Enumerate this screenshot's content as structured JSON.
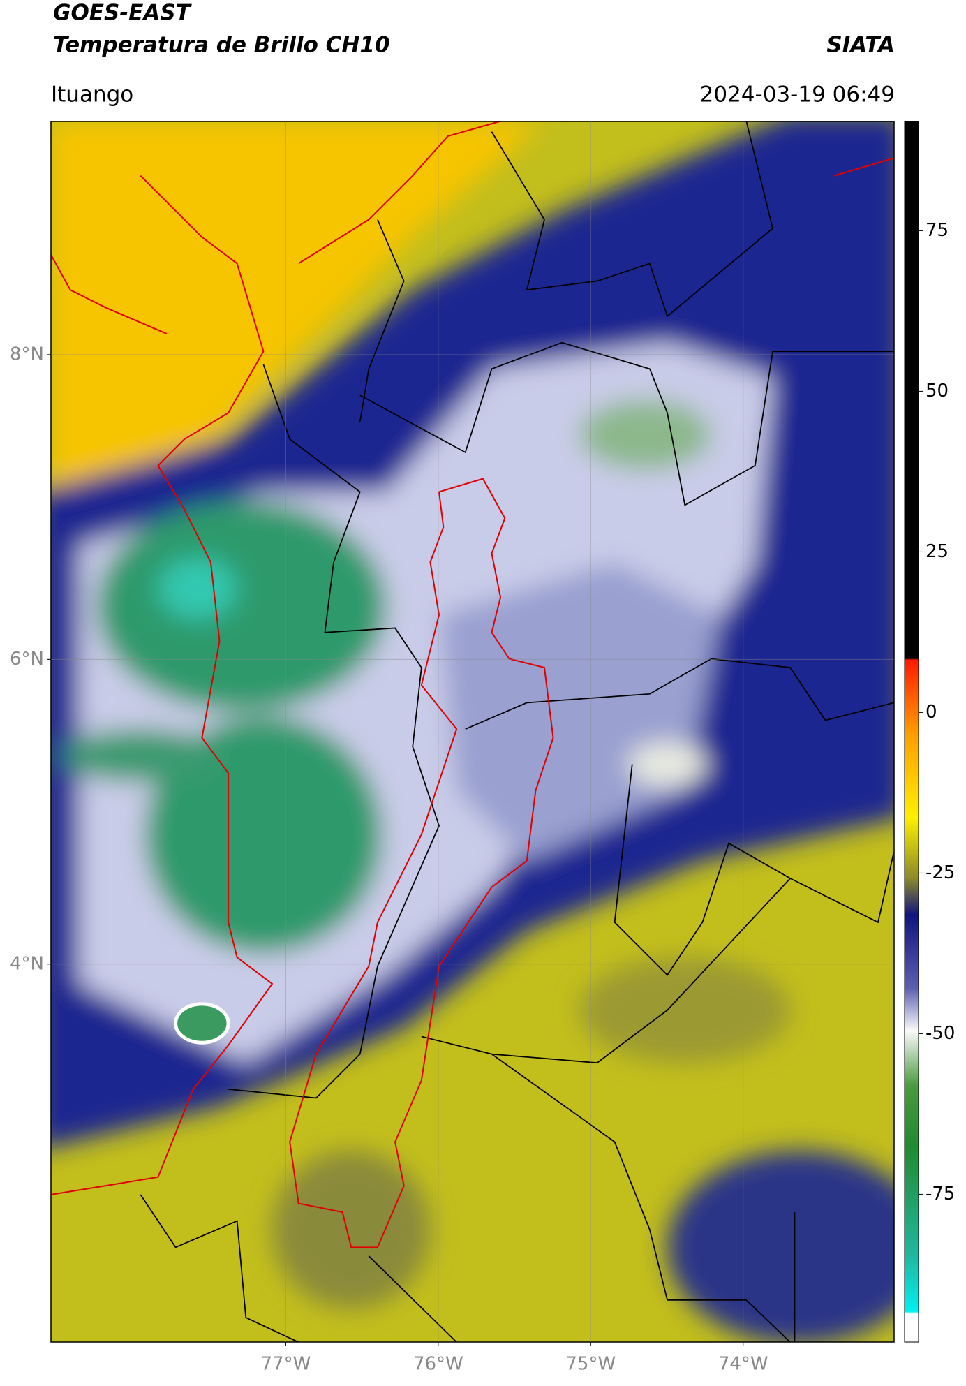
{
  "chart_data": {
    "type": "map",
    "title": "GOES-EAST",
    "subtitle": "Temperatura de Brillo CH10",
    "source": "SIATA",
    "location": "Ituango",
    "timestamp": "2024-03-19 06:49",
    "xlim": [
      -78.54,
      -73.01
    ],
    "ylim": [
      1.52,
      9.53
    ],
    "xticks": [
      {
        "value": -77,
        "label": "77°W"
      },
      {
        "value": -76,
        "label": "76°W"
      },
      {
        "value": -75,
        "label": "75°W"
      },
      {
        "value": -74,
        "label": "74°W"
      }
    ],
    "yticks": [
      {
        "value": 4,
        "label": "4°N"
      },
      {
        "value": 6,
        "label": "6°N"
      },
      {
        "value": 8,
        "label": "8°N"
      }
    ],
    "grid": true,
    "colorbar": {
      "lim": [
        -98,
        92
      ],
      "ticks": [
        -75,
        -50,
        -25,
        0,
        25,
        50,
        75
      ]
    }
  }
}
